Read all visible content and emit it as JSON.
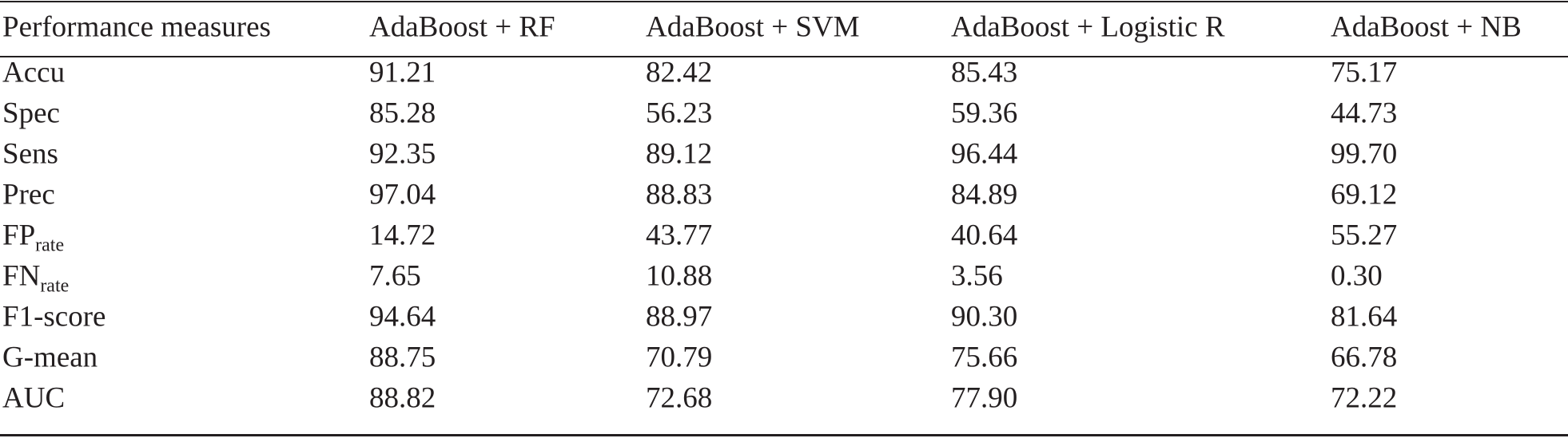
{
  "table": {
    "header": [
      "Performance measures",
      "AdaBoost + RF",
      "AdaBoost + SVM",
      "AdaBoost + Logistic R",
      "AdaBoost + NB"
    ],
    "rows": [
      {
        "label": "Accu",
        "values": [
          "91.21",
          "82.42",
          "85.43",
          "75.17"
        ]
      },
      {
        "label": "Spec",
        "values": [
          "85.28",
          "56.23",
          "59.36",
          "44.73"
        ]
      },
      {
        "label": "Sens",
        "values": [
          "92.35",
          "89.12",
          "96.44",
          "99.70"
        ]
      },
      {
        "label": "Prec",
        "values": [
          "97.04",
          "88.83",
          "84.89",
          "69.12"
        ]
      },
      {
        "label": "FP",
        "label_sub": "rate",
        "values": [
          "14.72",
          "43.77",
          "40.64",
          "55.27"
        ]
      },
      {
        "label": "FN",
        "label_sub": "rate",
        "values": [
          "7.65",
          "10.88",
          "3.56",
          "0.30"
        ]
      },
      {
        "label": "F1-score",
        "values": [
          "94.64",
          "88.97",
          "90.30",
          "81.64"
        ]
      },
      {
        "label": "G-mean",
        "values": [
          "88.75",
          "70.79",
          "75.66",
          "66.78"
        ]
      },
      {
        "label": "AUC",
        "values": [
          "88.82",
          "72.68",
          "77.90",
          "72.22"
        ]
      }
    ]
  }
}
